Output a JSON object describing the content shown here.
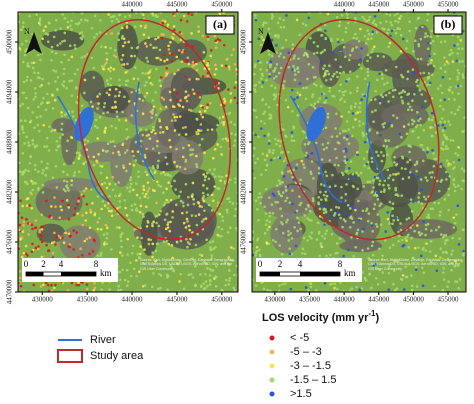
{
  "panels": [
    {
      "label": "(a)",
      "north": "N",
      "xlim": [
        427300,
        451800
      ],
      "ylim": [
        4470000,
        4503600
      ],
      "top_ticks": [
        440000,
        445000,
        450000
      ],
      "bottom_ticks": [
        430000,
        435000,
        440000,
        445000,
        450000
      ],
      "left_ticks": [
        4500000,
        4494000,
        4488000,
        4482000,
        4476000,
        4470000
      ],
      "scale": [
        "0",
        "2",
        "4",
        "8",
        "km"
      ],
      "source": "Source: Esri, DigitalGlobe, GeoEye, Earthstar Geographics, CNES/Airbus DS, USDA, USGS, AeroGRID, IGN, and the GIS User Community"
    },
    {
      "label": "(b)",
      "north": "N",
      "xlim": [
        426700,
        457600
      ],
      "ylim": [
        4470000,
        4503600
      ],
      "top_ticks": [
        440000,
        445000,
        450000,
        455000
      ],
      "bottom_ticks": [
        430000,
        435000,
        440000,
        445000,
        450000,
        455000
      ],
      "left_ticks": [
        4500000,
        4494000,
        4488000,
        4482000,
        4476000
      ],
      "scale": [
        "0",
        "2",
        "4",
        "8",
        "km"
      ],
      "source": "Source: Esri, DigitalGlobe, GeoEye, Earthstar Geographics, CNES/Airbus DS, USDA, USGS, AeroGRID, IGN, and the GIS User Community"
    }
  ],
  "legend": {
    "river": {
      "label": "River",
      "color": "#2f6fd6"
    },
    "study_area": {
      "label": "Study area",
      "color": "#c0282a"
    },
    "velocity_title": [
      "LOS velocity (mm yr",
      "-1",
      ")"
    ],
    "classes": [
      {
        "label": "< -5",
        "color": "#d7191c"
      },
      {
        "label": "-5 – -3",
        "color": "#fdae61"
      },
      {
        "label": "-3 – -1.5",
        "color": "#fde44a"
      },
      {
        "label": "-1.5 – 1.5",
        "color": "#a6d96a"
      },
      {
        "label": ">1.5",
        "color": "#2b4fd8"
      }
    ]
  }
}
